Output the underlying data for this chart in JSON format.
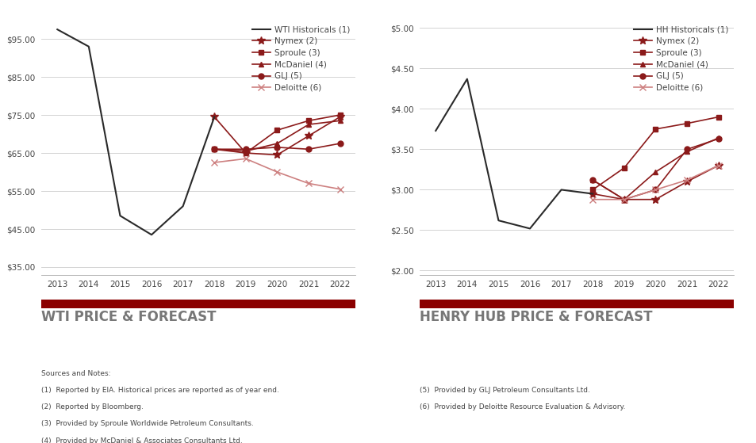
{
  "wti": {
    "historical_years": [
      2013,
      2014,
      2015,
      2016,
      2017,
      2018
    ],
    "historical_values": [
      97.5,
      93.0,
      48.5,
      43.5,
      51.0,
      74.5
    ],
    "forecast_years": [
      2018,
      2019,
      2020,
      2021,
      2022
    ],
    "nymex": [
      74.5,
      65.0,
      64.5,
      69.5,
      74.5
    ],
    "sproule": [
      66.0,
      65.0,
      71.0,
      73.5,
      75.0
    ],
    "mcdaniel": [
      66.0,
      65.5,
      67.5,
      72.5,
      73.5
    ],
    "gli": [
      66.0,
      66.0,
      66.5,
      66.0,
      67.5
    ],
    "deloitte": [
      62.5,
      63.5,
      60.0,
      57.0,
      55.5
    ],
    "ylim": [
      33,
      100
    ],
    "yticks": [
      35,
      45,
      55,
      65,
      75,
      85,
      95
    ],
    "title": "WTI PRICE & FORECAST"
  },
  "hh": {
    "historical_years": [
      2013,
      2014,
      2015,
      2016,
      2017,
      2018
    ],
    "historical_values": [
      3.73,
      4.37,
      2.62,
      2.52,
      3.0,
      2.95
    ],
    "forecast_years": [
      2018,
      2019,
      2020,
      2021,
      2022
    ],
    "nymex": [
      2.95,
      2.88,
      2.88,
      3.1,
      3.3
    ],
    "sproule": [
      3.0,
      3.27,
      3.75,
      3.82,
      3.9
    ],
    "mcdaniel": [
      3.12,
      2.88,
      3.22,
      3.47,
      3.64
    ],
    "gli": [
      3.12,
      2.88,
      3.0,
      3.5,
      3.63
    ],
    "deloitte": [
      2.88,
      2.88,
      3.0,
      3.12,
      3.3
    ],
    "ylim": [
      1.95,
      5.1
    ],
    "yticks": [
      2.0,
      2.5,
      3.0,
      3.5,
      4.0,
      4.5,
      5.0
    ],
    "title": "HENRY HUB PRICE & FORECAST"
  },
  "hist_color": "#2a2a2a",
  "dark_red": "#8b1a1a",
  "light_red": "#cd8080",
  "red_bar": "#8b0000",
  "title_color": "#777777",
  "footnote_left": [
    "Sources and Notes:",
    "(1)  Reported by EIA. Historical prices are reported as of year end.",
    "(2)  Reported by Bloomberg.",
    "(3)  Provided by Sproule Worldwide Petroleum Consultants.",
    "(4)  Provided by McDaniel & Associates Consultants Ltd."
  ],
  "footnote_right": [
    "(5)  Provided by GLJ Petroleum Consultants Ltd.",
    "(6)  Provided by Deloitte Resource Evaluation & Advisory."
  ]
}
